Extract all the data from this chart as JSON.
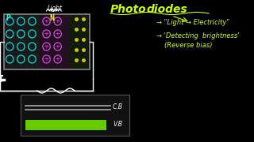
{
  "bg_color": "#000000",
  "title_text": "Photodiodes",
  "title_color": "#ccff00",
  "subtitle1": "→ \"Light → Electricity\"",
  "subtitle1_color": "#ccff00",
  "subtitle2": "→ 'Detecting  brightness'",
  "subtitle2_color": "#ccff00",
  "subtitle3": "(Reverse bias)",
  "subtitle3_color": "#ccff00",
  "light_label": "Light",
  "light_label_color": "#ffffff",
  "p_label": "P",
  "p_label_color": "#00ffff",
  "n_label": "N",
  "n_label_color": "#ffff00",
  "cb_label": "C.B",
  "cb_label_color": "#ffffff",
  "vb_label": "V.B",
  "vb_label_color": "#ffffff",
  "p_region_color": "#303030",
  "n_region_color": "#2a1a2a",
  "junction_region_color": "#1a2a1a",
  "circle_color_p": "#00cccc",
  "circle_color_n": "#cc44cc",
  "dot_color": "#cccc00",
  "vb_bar_color": "#66cc00",
  "cb_line_color": "#aaaaaa",
  "battery_color": "#ffffff",
  "resistor_color": "#ffffff",
  "wire_color": "#ffffff"
}
